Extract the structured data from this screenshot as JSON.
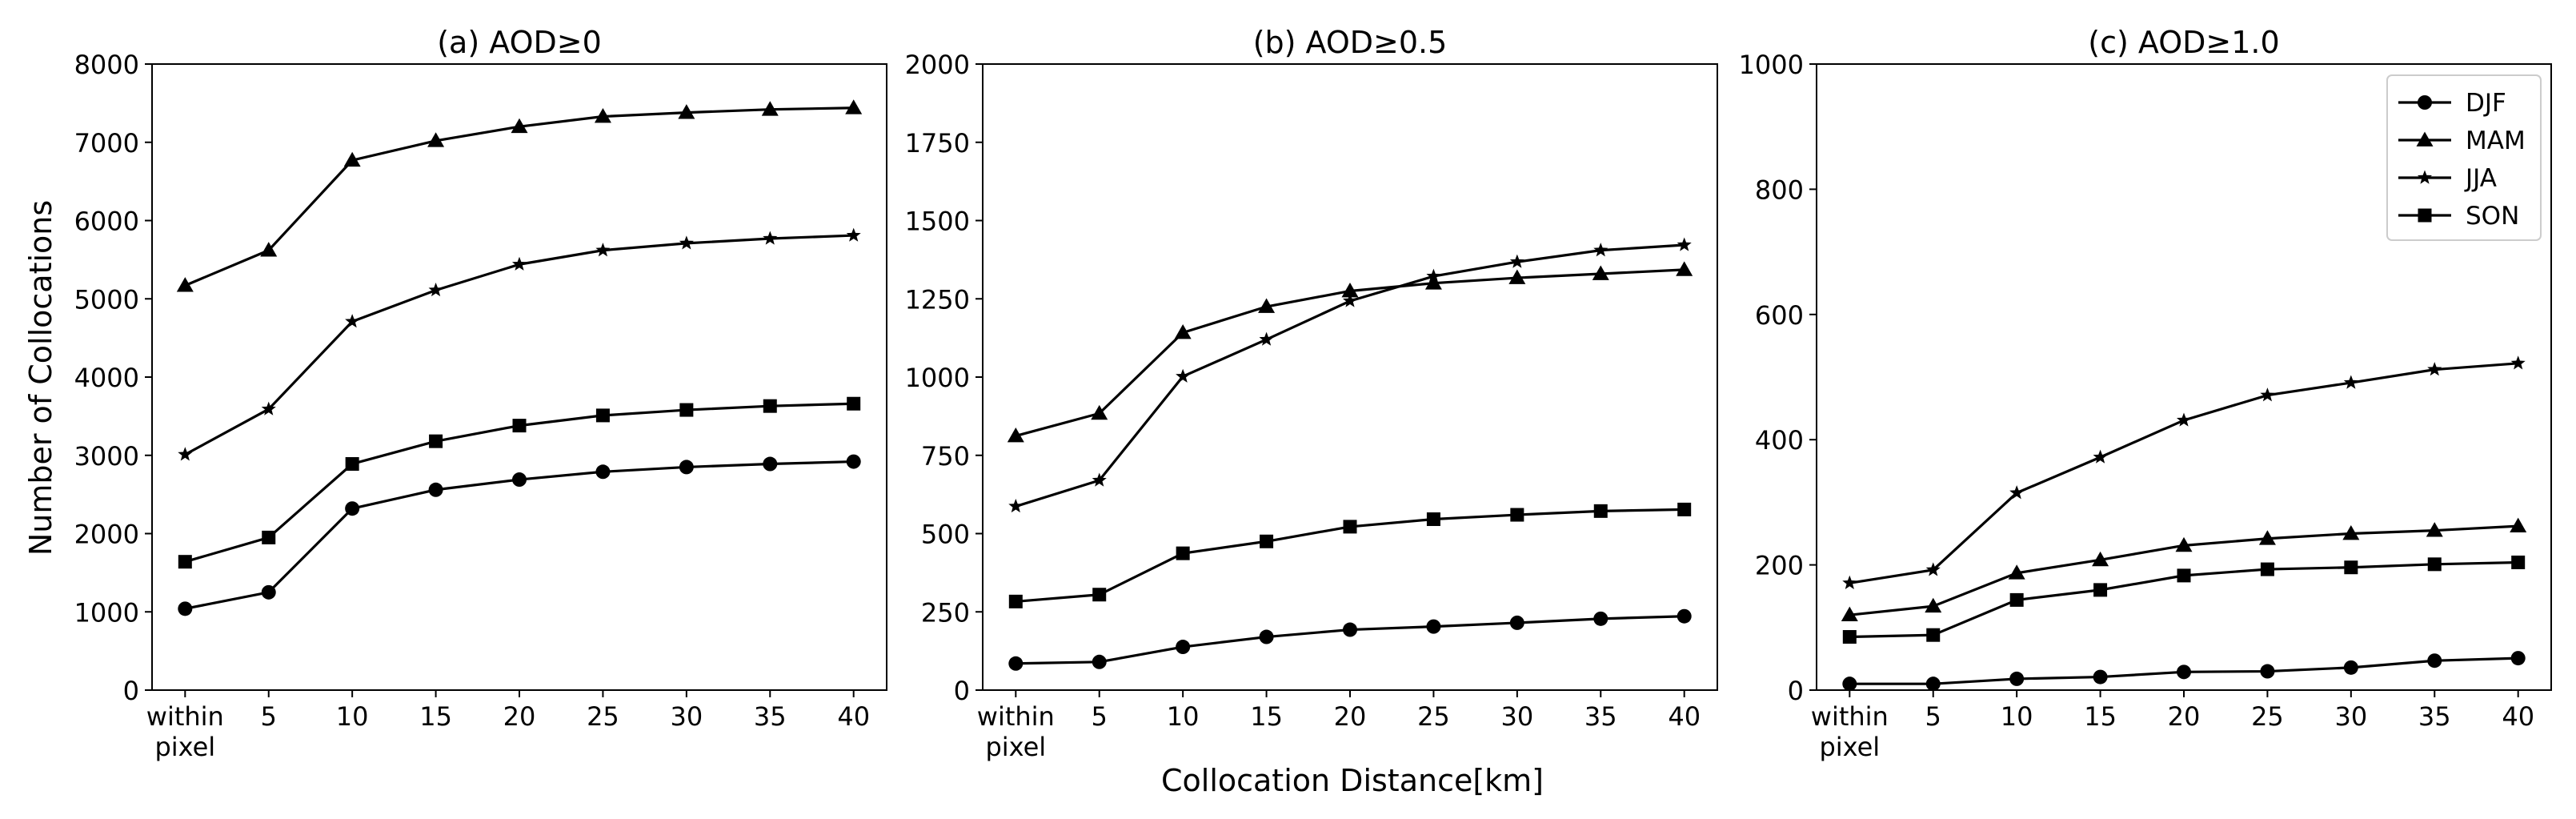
{
  "figure": {
    "ylabel": "Number of Collocations",
    "xlabel": "Collocation Distance[km]"
  },
  "legend": {
    "entries": [
      {
        "label": "DJF",
        "marker": "circle"
      },
      {
        "label": "MAM",
        "marker": "triangle"
      },
      {
        "label": "JJA",
        "marker": "star"
      },
      {
        "label": "SON",
        "marker": "square"
      }
    ]
  },
  "chart_data": [
    {
      "type": "line",
      "title": "(a) AOD≥0",
      "x_tick_labels": [
        "within\npixel",
        "5",
        "10",
        "15",
        "20",
        "25",
        "30",
        "35",
        "40"
      ],
      "ylim": [
        0,
        8000
      ],
      "yticks": [
        "0",
        "1000",
        "2000",
        "3000",
        "4000",
        "5000",
        "6000",
        "7000",
        "8000"
      ],
      "grid": false,
      "series": [
        {
          "name": "DJF",
          "marker": "circle",
          "values": [
            1040,
            1250,
            2320,
            2560,
            2690,
            2790,
            2850,
            2890,
            2920
          ]
        },
        {
          "name": "MAM",
          "marker": "triangle",
          "values": [
            5170,
            5620,
            6770,
            7020,
            7200,
            7330,
            7380,
            7420,
            7440
          ]
        },
        {
          "name": "JJA",
          "marker": "star",
          "values": [
            3010,
            3590,
            4710,
            5110,
            5440,
            5620,
            5710,
            5770,
            5810
          ]
        },
        {
          "name": "SON",
          "marker": "square",
          "values": [
            1640,
            1950,
            2890,
            3180,
            3380,
            3510,
            3580,
            3630,
            3660
          ]
        }
      ]
    },
    {
      "type": "line",
      "title": "(b) AOD≥0.5",
      "x_tick_labels": [
        "within\npixel",
        "5",
        "10",
        "15",
        "20",
        "25",
        "30",
        "35",
        "40"
      ],
      "ylim": [
        0,
        2000
      ],
      "yticks": [
        "0",
        "250",
        "500",
        "750",
        "1000",
        "1250",
        "1500",
        "1750",
        "2000"
      ],
      "grid": false,
      "series": [
        {
          "name": "DJF",
          "marker": "circle",
          "values": [
            85,
            90,
            138,
            170,
            193,
            203,
            215,
            228,
            236
          ]
        },
        {
          "name": "MAM",
          "marker": "triangle",
          "values": [
            812,
            884,
            1142,
            1225,
            1275,
            1300,
            1317,
            1330,
            1343
          ]
        },
        {
          "name": "JJA",
          "marker": "star",
          "values": [
            587,
            670,
            1002,
            1120,
            1243,
            1322,
            1368,
            1405,
            1422
          ]
        },
        {
          "name": "SON",
          "marker": "square",
          "values": [
            283,
            305,
            437,
            475,
            522,
            546,
            560,
            572,
            577
          ]
        }
      ]
    },
    {
      "type": "line",
      "title": "(c) AOD≥1.0",
      "x_tick_labels": [
        "within\npixel",
        "5",
        "10",
        "15",
        "20",
        "25",
        "30",
        "35",
        "40"
      ],
      "ylim": [
        0,
        1000
      ],
      "yticks": [
        "0",
        "200",
        "400",
        "600",
        "800",
        "1000"
      ],
      "grid": false,
      "legend_position": "upper right",
      "series": [
        {
          "name": "DJF",
          "marker": "circle",
          "values": [
            10,
            10,
            18,
            21,
            29,
            30,
            36,
            47,
            51
          ]
        },
        {
          "name": "MAM",
          "marker": "triangle",
          "values": [
            120,
            134,
            187,
            208,
            231,
            242,
            250,
            255,
            262
          ]
        },
        {
          "name": "JJA",
          "marker": "star",
          "values": [
            171,
            192,
            315,
            372,
            431,
            471,
            491,
            512,
            522
          ]
        },
        {
          "name": "SON",
          "marker": "square",
          "values": [
            85,
            88,
            144,
            160,
            183,
            193,
            196,
            201,
            204
          ]
        }
      ]
    }
  ]
}
